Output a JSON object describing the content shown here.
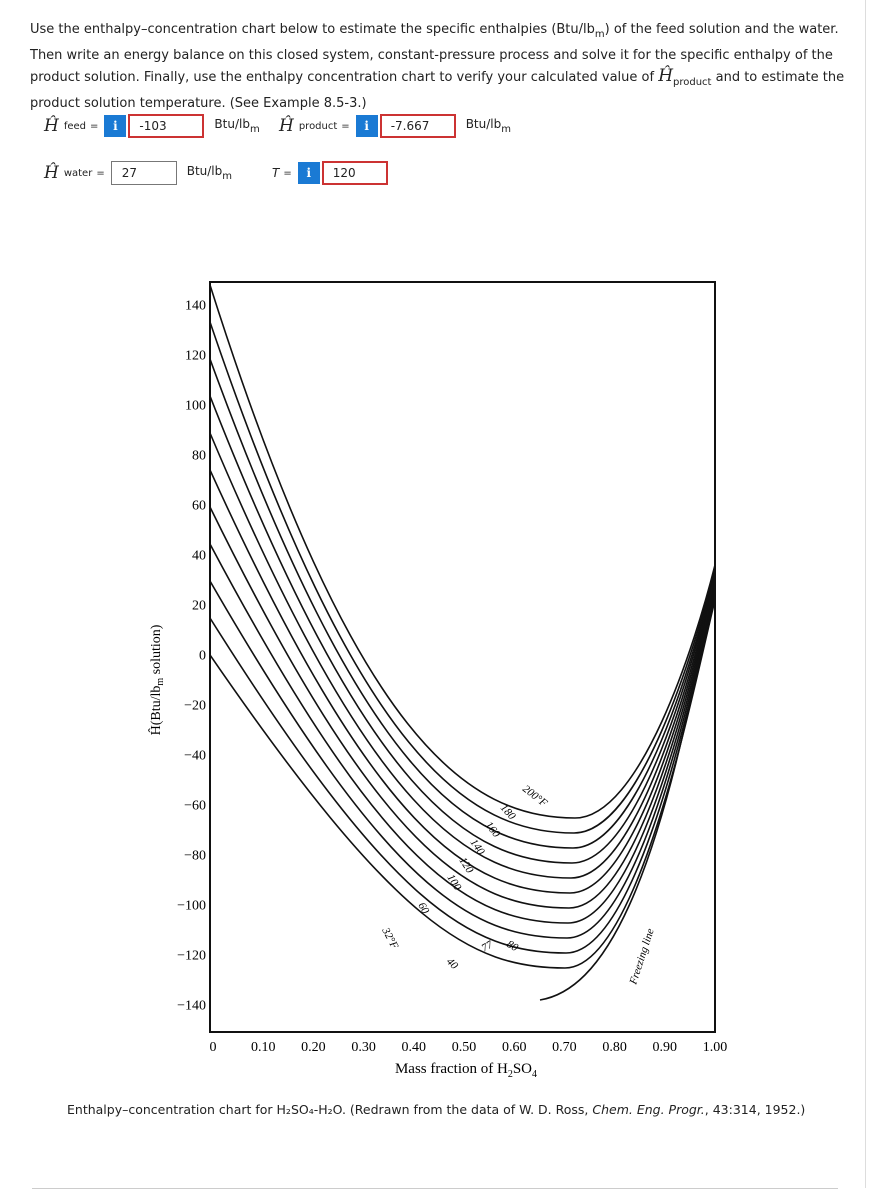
{
  "question": {
    "parts": [
      "Use the enthalpy–concentration chart below to estimate the specific enthalpies (Btu/lb",
      "m",
      ") of the feed solution and the water. Then write an energy balance on this closed system, constant-pressure process and solve it for the specific enthalpy of the product solution. Finally, use the enthalpy concentration chart to verify your calculated value of ",
      "Ĥ",
      "product",
      " and to estimate the product solution temperature. (See Example 8.5-3.)"
    ]
  },
  "fields": [
    {
      "symbol": "Ĥ",
      "sub": "feed",
      "eq": "=",
      "info": "i",
      "value": "-103",
      "unit": "Btu/lb",
      "unit_sub": "m"
    },
    {
      "symbol": "Ĥ",
      "sub": "product",
      "eq": "=",
      "info": "i",
      "value": "-7.667",
      "unit": "Btu/lb",
      "unit_sub": "m"
    },
    {
      "symbol": "Ĥ",
      "sub": "water",
      "eq": "=",
      "value": "27",
      "unit": "Btu/lb",
      "unit_sub": "m"
    },
    {
      "symbol": "T",
      "eq": "=",
      "info": "i",
      "value": "120"
    }
  ],
  "chart_data": {
    "type": "line",
    "ylabel": [
      "Ĥ(Btu/lb",
      "m",
      " solution)"
    ],
    "xlabel": [
      "Mass fraction of H",
      "2",
      "SO",
      "4"
    ],
    "xlim": [
      -0.006,
      1.0
    ],
    "ylim": [
      -151,
      149
    ],
    "xticks": [
      0,
      {
        "value": 0.1,
        "label": "0.10"
      },
      {
        "value": 0.2,
        "label": "0.20"
      },
      {
        "value": 0.3,
        "label": "0.30"
      },
      {
        "value": 0.4,
        "label": "0.40"
      },
      {
        "value": 0.5,
        "label": "0.50"
      },
      {
        "value": 0.6,
        "label": "0.60"
      },
      {
        "value": 0.7,
        "label": "0.70"
      },
      {
        "value": 0.8,
        "label": "0.80"
      },
      {
        "value": 0.9,
        "label": "0.90"
      },
      {
        "value": 1.0,
        "label": "1.00"
      }
    ],
    "yticks": [
      140,
      120,
      100,
      80,
      60,
      40,
      20,
      0,
      {
        "value": -20,
        "label": "−20"
      },
      {
        "value": -40,
        "label": "−40"
      },
      {
        "value": -60,
        "label": "−60"
      },
      {
        "value": -80,
        "label": "−80"
      },
      {
        "value": -100,
        "label": "−100"
      },
      {
        "value": -120,
        "label": "−120"
      },
      {
        "value": -140,
        "label": "−140"
      }
    ],
    "curve_labels": [
      "200°F",
      "180",
      "160",
      "140",
      "120",
      "100",
      "60",
      "32°F",
      "40",
      "77",
      "80",
      "Freezing line"
    ]
  },
  "caption": [
    "Enthalpy–concentration chart for H₂SO₄-H₂O. (Redrawn from the data of W. D. Ross, ",
    "Chem. Eng. Progr.",
    ", 43:314, 1952.)"
  ]
}
